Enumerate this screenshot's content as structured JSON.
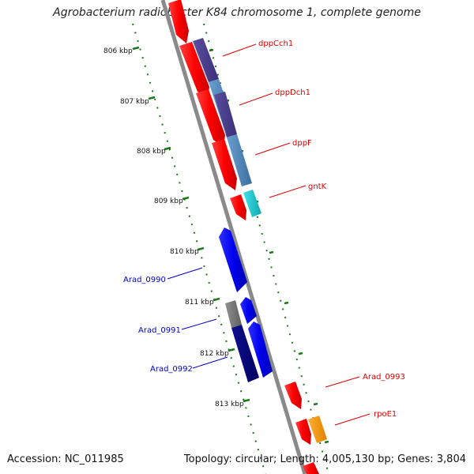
{
  "title": "Agrobacterium radiobacter K84 chromosome 1, complete genome",
  "footer": {
    "accession": "Accession: NC_011985",
    "topology": "Topology: circular; Length: 4,005,130 bp; Genes: 3,804"
  },
  "kbp_ticks": [
    "806 kbp",
    "807 kbp",
    "808 kbp",
    "809 kbp",
    "810 kbp",
    "811 kbp",
    "812 kbp",
    "813 kbp"
  ],
  "genes_forward": [
    {
      "name": "dppCch1",
      "color": "#dd0000"
    },
    {
      "name": "dppDch1",
      "color": "#dd0000"
    },
    {
      "name": "dppF",
      "color": "#dd0000"
    },
    {
      "name": "gntK",
      "color": "#dd0000"
    },
    {
      "name": "Arad_0993",
      "color": "#dd0000"
    },
    {
      "name": "rpoE1",
      "color": "#dd0000"
    }
  ],
  "genes_reverse": [
    {
      "name": "Arad_0990",
      "color": "#0000cc"
    },
    {
      "name": "Arad_0991",
      "color": "#0000cc"
    },
    {
      "name": "Arad_0992",
      "color": "#0000cc"
    }
  ],
  "colors": {
    "forward_strand": "#ff0000",
    "reverse_strand": "#0000ee",
    "backbone": "#888888",
    "tick_marks": "#1a7a1a",
    "cog_blue": "#4682b4",
    "cog_purple": "#483d8b",
    "cog_cyan": "#20c0c8",
    "cog_orange": "#ff9900",
    "cog_navy": "#000080",
    "cog_gray": "#777777"
  }
}
